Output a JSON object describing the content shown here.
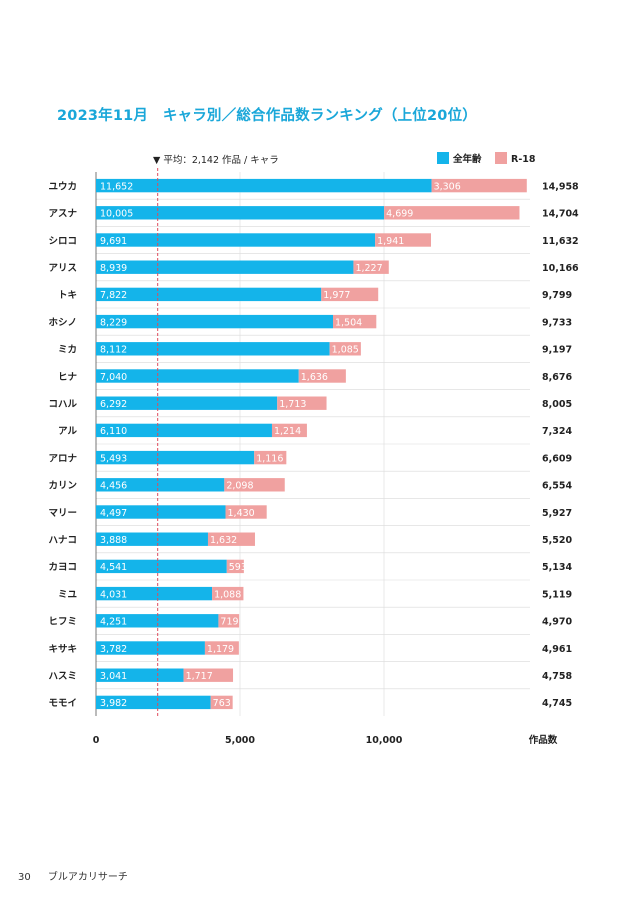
{
  "title": "2023年11月　キャラ別／総合作品数ランキング（上位20位）",
  "footer": {
    "page_number": "30",
    "publication": "ブルアカリサーチ"
  },
  "colors": {
    "all_ages": "#14b4ea",
    "r18": "#f0a1a0",
    "avg_line": "#e04a5a",
    "title": "#1aa7d9"
  },
  "chart_data": {
    "type": "bar",
    "orientation": "horizontal",
    "stacked": true,
    "categories": [
      "ユウカ",
      "アスナ",
      "シロコ",
      "アリス",
      "トキ",
      "ホシノ",
      "ミカ",
      "ヒナ",
      "コハル",
      "アル",
      "アロナ",
      "カリン",
      "マリー",
      "ハナコ",
      "カヨコ",
      "ミユ",
      "ヒフミ",
      "キサキ",
      "ハスミ",
      "モモイ"
    ],
    "series": [
      {
        "name": "全年齢",
        "values": [
          11652,
          10005,
          9691,
          8939,
          7822,
          8229,
          8112,
          7040,
          6292,
          6110,
          5493,
          4456,
          4497,
          3888,
          4541,
          4031,
          4251,
          3782,
          3041,
          3982
        ]
      },
      {
        "name": "R-18",
        "values": [
          3306,
          4699,
          1941,
          1227,
          1977,
          1504,
          1085,
          1636,
          1713,
          1214,
          1116,
          2098,
          1430,
          1632,
          593,
          1088,
          719,
          1179,
          1717,
          763
        ]
      }
    ],
    "series_labels": [
      [
        "11,652",
        "10,005",
        "9,691",
        "8,939",
        "7,822",
        "8,229",
        "8,112",
        "7,040",
        "6,292",
        "6,110",
        "5,493",
        "4,456",
        "4,497",
        "3,888",
        "4,541",
        "4,031",
        "4,251",
        "3,782",
        "3,041",
        "3,982"
      ],
      [
        "3,306",
        "4,699",
        "1,941",
        "1,227",
        "1,977",
        "1,504",
        "1,085",
        "1,636",
        "1,713",
        "1,214",
        "1,116",
        "2,098",
        "1,430",
        "1,632",
        "593",
        "1,088",
        "719",
        "1,179",
        "1,717",
        "763"
      ]
    ],
    "totals": [
      "14,958",
      "14,704",
      "11,632",
      "10,166",
      "9,799",
      "9,733",
      "9,197",
      "8,676",
      "8,005",
      "7,324",
      "6,609",
      "6,554",
      "5,927",
      "5,520",
      "5,134",
      "5,119",
      "4,970",
      "4,961",
      "4,758",
      "4,745"
    ],
    "average": 2142,
    "average_label": "▼ 平均：2,142 作品 / キャラ",
    "xlim": [
      0,
      15000
    ],
    "xticks": [
      0,
      5000,
      10000
    ],
    "xtick_labels": [
      "0",
      "5,000",
      "10,000"
    ],
    "xlabel": "作品数",
    "legend": [
      "全年齢",
      "R-18"
    ],
    "legend_position": "top-right",
    "grid": true
  }
}
